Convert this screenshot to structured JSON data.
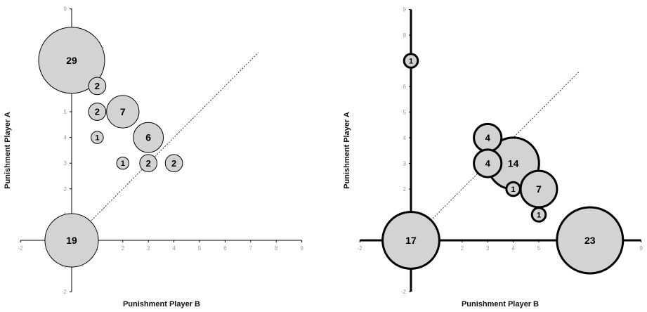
{
  "chart_data": [
    {
      "type": "scatter",
      "subtype": "bubble",
      "title": "",
      "xlabel": "Punishment Player B",
      "ylabel": "Punishment Player A",
      "xlim": [
        -2,
        9
      ],
      "ylim": [
        -2,
        9
      ],
      "x_ticks": [
        "-2",
        "-1",
        "0",
        "1",
        "2",
        "3",
        "4",
        "5",
        "6",
        "7",
        "8",
        "9"
      ],
      "y_ticks": [
        "-2",
        "-1",
        "0",
        "1",
        "2",
        "3",
        "4",
        "5",
        "6",
        "7",
        "8",
        "9"
      ],
      "diagonal": {
        "from": [
          0,
          0
        ],
        "to": [
          7.3,
          7.3
        ],
        "style": "dotted"
      },
      "grid": false,
      "axis_style": "thin",
      "bubble_fill": "#d3d3d3",
      "bubble_stroke": "#000000",
      "points": [
        {
          "x": 0,
          "y": 7,
          "count": 29,
          "label": "29"
        },
        {
          "x": 1,
          "y": 6,
          "count": 2,
          "label": "2"
        },
        {
          "x": 1,
          "y": 5,
          "count": 2,
          "label": "2"
        },
        {
          "x": 2,
          "y": 5,
          "count": 7,
          "label": "7"
        },
        {
          "x": 1,
          "y": 4,
          "count": 1,
          "label": "1"
        },
        {
          "x": 3,
          "y": 4,
          "count": 6,
          "label": "6"
        },
        {
          "x": 2,
          "y": 3,
          "count": 1,
          "label": "1"
        },
        {
          "x": 3,
          "y": 3,
          "count": 2,
          "label": "2"
        },
        {
          "x": 4,
          "y": 3,
          "count": 2,
          "label": "2"
        },
        {
          "x": 0,
          "y": 0,
          "count": 19,
          "label": "19"
        }
      ]
    },
    {
      "type": "scatter",
      "subtype": "bubble",
      "title": "",
      "xlabel": "Punishment Player B",
      "ylabel": "Punishment Player A",
      "xlim": [
        -2,
        9
      ],
      "ylim": [
        -2,
        9
      ],
      "x_ticks": [
        "-2",
        "-1",
        "0",
        "1",
        "2",
        "3",
        "4",
        "5",
        "6",
        "7",
        "8",
        "9"
      ],
      "y_ticks": [
        "-2",
        "-1",
        "0",
        "1",
        "2",
        "3",
        "4",
        "5",
        "6",
        "7",
        "8",
        "9"
      ],
      "diagonal": {
        "from": [
          0,
          0
        ],
        "to": [
          6.6,
          6.6
        ],
        "style": "dotted"
      },
      "grid": false,
      "axis_style": "thick",
      "bubble_fill": "#d3d3d3",
      "bubble_stroke": "#000000",
      "points": [
        {
          "x": 0,
          "y": 7,
          "count": 1,
          "label": "1"
        },
        {
          "x": 3,
          "y": 4,
          "count": 4,
          "label": "4"
        },
        {
          "x": 3,
          "y": 3,
          "count": 4,
          "label": "4"
        },
        {
          "x": 4,
          "y": 3,
          "count": 14,
          "label": "14"
        },
        {
          "x": 4,
          "y": 2,
          "count": 1,
          "label": "1"
        },
        {
          "x": 5,
          "y": 2,
          "count": 7,
          "label": "7"
        },
        {
          "x": 5,
          "y": 1,
          "count": 1,
          "label": "1"
        },
        {
          "x": 0,
          "y": 0,
          "count": 17,
          "label": "17"
        },
        {
          "x": 7,
          "y": 0,
          "count": 23,
          "label": "23"
        }
      ]
    }
  ]
}
